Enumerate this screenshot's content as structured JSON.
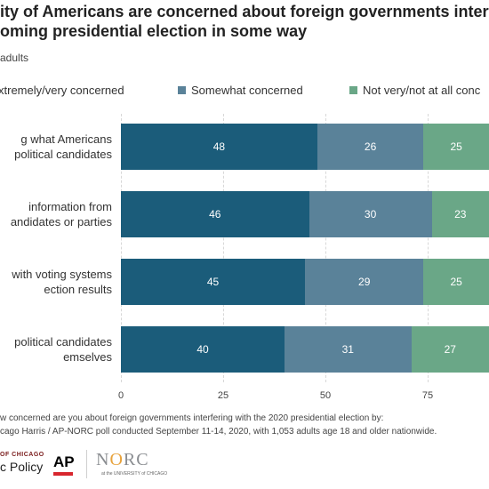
{
  "header": {
    "title_line1": "ity of Americans are concerned about foreign governments interfer",
    "title_line2": "oming presidential election in some way",
    "subtitle": "adults"
  },
  "colors": {
    "extremely": "#1b5c7a",
    "somewhat": "#5a8299",
    "not": "#6aa787"
  },
  "chart_data": {
    "type": "bar",
    "orientation": "horizontal",
    "stacked": true,
    "categories": [
      [
        "g what Americans",
        "political candidates"
      ],
      [
        "information from",
        "andidates or parties"
      ],
      [
        "with voting systems",
        "ection results"
      ],
      [
        "political candidates",
        "emselves"
      ]
    ],
    "series": [
      {
        "name": "xtremely/very concerned",
        "values": [
          48,
          46,
          45,
          40
        ]
      },
      {
        "name": "Somewhat concerned",
        "values": [
          26,
          30,
          29,
          31
        ]
      },
      {
        "name": "Not very/not at all conc",
        "values": [
          25,
          23,
          25,
          27
        ]
      }
    ],
    "xlim": [
      0,
      100
    ],
    "xticks": [
      0,
      25,
      50,
      75
    ],
    "grid": true,
    "legend_position": "top"
  },
  "footnotes": {
    "question": "w concerned are you about foreign governments interfering with the 2020 presidential election by:",
    "source": "cago Harris / AP-NORC poll conducted September 11-14, 2020, with 1,053 adults age 18 and older nationwide."
  },
  "logos": {
    "harris_line1": "OF CHICAGO",
    "harris_line2": "c Policy",
    "ap": "AP",
    "norc_n": "N",
    "norc_o": "O",
    "norc_rest": "RC",
    "norc_sub": "at the UNIVERSITY of CHICAGO"
  }
}
